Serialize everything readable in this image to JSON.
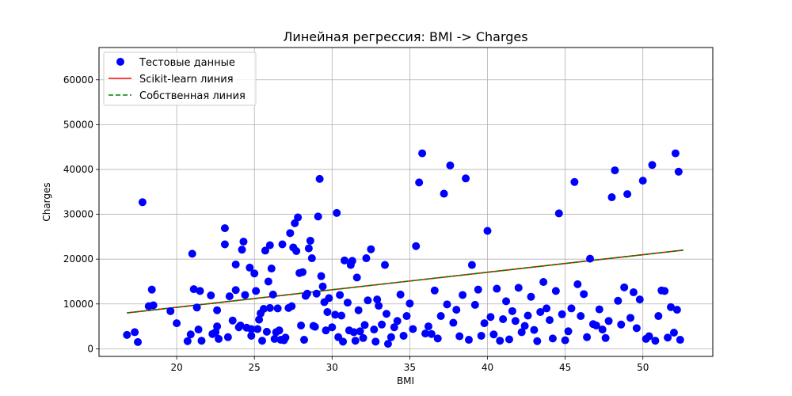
{
  "chart_data": {
    "type": "scatter",
    "title": "Линейная регрессия: BMI -> Charges",
    "xlabel": "BMI",
    "ylabel": "Charges",
    "xlim": [
      15.0,
      54.5
    ],
    "ylim": [
      -1700,
      67200
    ],
    "xticks": [
      20,
      25,
      30,
      35,
      40,
      45,
      50
    ],
    "yticks": [
      0,
      10000,
      20000,
      30000,
      40000,
      50000,
      60000
    ],
    "grid": true,
    "legend_position": "top-left",
    "series": [
      {
        "name": "Тестовые данные",
        "kind": "scatter",
        "color": "#0000ff",
        "points": [
          [
            16.8,
            3100
          ],
          [
            17.3,
            3700
          ],
          [
            17.5,
            1500
          ],
          [
            17.8,
            32700
          ],
          [
            18.2,
            9500
          ],
          [
            18.4,
            13200
          ],
          [
            18.5,
            9700
          ],
          [
            19.6,
            8400
          ],
          [
            20.0,
            5700
          ],
          [
            20.7,
            1700
          ],
          [
            20.9,
            3200
          ],
          [
            21.0,
            21200
          ],
          [
            21.1,
            13300
          ],
          [
            21.3,
            9200
          ],
          [
            21.4,
            4300
          ],
          [
            21.5,
            12900
          ],
          [
            21.6,
            1800
          ],
          [
            22.2,
            11900
          ],
          [
            22.3,
            3300
          ],
          [
            22.5,
            3700
          ],
          [
            22.6,
            8600
          ],
          [
            22.6,
            5000
          ],
          [
            22.7,
            2200
          ],
          [
            23.1,
            26900
          ],
          [
            23.1,
            23300
          ],
          [
            23.3,
            2600
          ],
          [
            23.4,
            11700
          ],
          [
            23.6,
            6300
          ],
          [
            23.8,
            13100
          ],
          [
            23.8,
            18800
          ],
          [
            24.0,
            4800
          ],
          [
            24.1,
            5200
          ],
          [
            24.2,
            22100
          ],
          [
            24.3,
            23900
          ],
          [
            24.4,
            12000
          ],
          [
            24.5,
            4700
          ],
          [
            24.7,
            18100
          ],
          [
            24.8,
            2900
          ],
          [
            24.8,
            4400
          ],
          [
            25.0,
            16800
          ],
          [
            25.1,
            12900
          ],
          [
            25.2,
            4400
          ],
          [
            25.3,
            6500
          ],
          [
            25.4,
            7900
          ],
          [
            25.5,
            1800
          ],
          [
            25.6,
            8900
          ],
          [
            25.7,
            21900
          ],
          [
            25.8,
            3800
          ],
          [
            25.9,
            15000
          ],
          [
            26.0,
            23100
          ],
          [
            26.0,
            9100
          ],
          [
            26.1,
            17900
          ],
          [
            26.2,
            12100
          ],
          [
            26.3,
            2200
          ],
          [
            26.4,
            3700
          ],
          [
            26.5,
            9000
          ],
          [
            26.6,
            4100
          ],
          [
            26.7,
            2000
          ],
          [
            26.8,
            23300
          ],
          [
            26.9,
            1900
          ],
          [
            27.0,
            2500
          ],
          [
            27.2,
            9100
          ],
          [
            27.3,
            25800
          ],
          [
            27.4,
            9500
          ],
          [
            27.5,
            22600
          ],
          [
            27.6,
            28000
          ],
          [
            27.7,
            21800
          ],
          [
            27.8,
            29300
          ],
          [
            27.9,
            16900
          ],
          [
            28.0,
            5200
          ],
          [
            28.1,
            17100
          ],
          [
            28.2,
            2000
          ],
          [
            28.3,
            11800
          ],
          [
            28.4,
            12300
          ],
          [
            28.5,
            22400
          ],
          [
            28.6,
            24100
          ],
          [
            28.7,
            20200
          ],
          [
            28.8,
            5100
          ],
          [
            28.9,
            4900
          ],
          [
            29.0,
            12300
          ],
          [
            29.1,
            29500
          ],
          [
            29.2,
            37900
          ],
          [
            29.3,
            16200
          ],
          [
            29.4,
            13900
          ],
          [
            29.5,
            10400
          ],
          [
            29.6,
            4100
          ],
          [
            29.7,
            8200
          ],
          [
            29.8,
            11300
          ],
          [
            30.0,
            4800
          ],
          [
            30.2,
            7600
          ],
          [
            30.3,
            30300
          ],
          [
            30.4,
            2600
          ],
          [
            30.5,
            12000
          ],
          [
            30.6,
            7400
          ],
          [
            30.7,
            1600
          ],
          [
            30.8,
            19700
          ],
          [
            31.0,
            10300
          ],
          [
            31.1,
            4100
          ],
          [
            31.2,
            18700
          ],
          [
            31.3,
            19600
          ],
          [
            31.4,
            3700
          ],
          [
            31.5,
            1800
          ],
          [
            31.6,
            15900
          ],
          [
            31.7,
            8600
          ],
          [
            31.8,
            3900
          ],
          [
            32.0,
            2400
          ],
          [
            32.1,
            5300
          ],
          [
            32.2,
            20200
          ],
          [
            32.3,
            10800
          ],
          [
            32.5,
            22200
          ],
          [
            32.7,
            4300
          ],
          [
            32.8,
            1600
          ],
          [
            32.9,
            11000
          ],
          [
            33.0,
            9600
          ],
          [
            33.2,
            5400
          ],
          [
            33.4,
            18700
          ],
          [
            33.5,
            7800
          ],
          [
            33.6,
            1100
          ],
          [
            33.8,
            2600
          ],
          [
            34.0,
            4800
          ],
          [
            34.2,
            6200
          ],
          [
            34.4,
            12100
          ],
          [
            34.6,
            2900
          ],
          [
            34.8,
            7300
          ],
          [
            35.0,
            10100
          ],
          [
            35.2,
            4400
          ],
          [
            35.4,
            22900
          ],
          [
            35.6,
            37100
          ],
          [
            35.8,
            43600
          ],
          [
            36.0,
            3400
          ],
          [
            36.2,
            5000
          ],
          [
            36.4,
            3300
          ],
          [
            36.6,
            13000
          ],
          [
            36.8,
            2300
          ],
          [
            37.0,
            7300
          ],
          [
            37.2,
            34600
          ],
          [
            37.4,
            9900
          ],
          [
            37.6,
            40900
          ],
          [
            37.8,
            5800
          ],
          [
            38.0,
            8700
          ],
          [
            38.2,
            2800
          ],
          [
            38.4,
            12000
          ],
          [
            38.6,
            38000
          ],
          [
            38.8,
            2000
          ],
          [
            39.0,
            18700
          ],
          [
            39.2,
            9800
          ],
          [
            39.4,
            13200
          ],
          [
            39.6,
            2900
          ],
          [
            39.8,
            5700
          ],
          [
            40.0,
            26300
          ],
          [
            40.2,
            7100
          ],
          [
            40.4,
            3200
          ],
          [
            40.6,
            13400
          ],
          [
            40.8,
            1800
          ],
          [
            41.0,
            6600
          ],
          [
            41.2,
            10600
          ],
          [
            41.4,
            2100
          ],
          [
            41.6,
            8400
          ],
          [
            41.8,
            6200
          ],
          [
            42.0,
            13600
          ],
          [
            42.2,
            3700
          ],
          [
            42.4,
            5100
          ],
          [
            42.6,
            7400
          ],
          [
            42.8,
            11600
          ],
          [
            43.0,
            4200
          ],
          [
            43.2,
            1700
          ],
          [
            43.4,
            8200
          ],
          [
            43.6,
            14900
          ],
          [
            43.8,
            9000
          ],
          [
            44.0,
            6400
          ],
          [
            44.2,
            2300
          ],
          [
            44.4,
            12900
          ],
          [
            44.6,
            30200
          ],
          [
            44.8,
            7700
          ],
          [
            45.0,
            1900
          ],
          [
            45.2,
            3900
          ],
          [
            45.4,
            9000
          ],
          [
            45.6,
            37200
          ],
          [
            45.8,
            14400
          ],
          [
            46.0,
            7300
          ],
          [
            46.2,
            12200
          ],
          [
            46.4,
            2600
          ],
          [
            46.6,
            20100
          ],
          [
            46.8,
            5500
          ],
          [
            47.0,
            5200
          ],
          [
            47.2,
            8800
          ],
          [
            47.4,
            4300
          ],
          [
            47.6,
            2400
          ],
          [
            47.8,
            6200
          ],
          [
            48.0,
            33800
          ],
          [
            48.2,
            39800
          ],
          [
            48.4,
            10700
          ],
          [
            48.6,
            5400
          ],
          [
            48.8,
            13700
          ],
          [
            49.0,
            34500
          ],
          [
            49.2,
            6900
          ],
          [
            49.4,
            12600
          ],
          [
            49.6,
            4600
          ],
          [
            49.8,
            11000
          ],
          [
            50.0,
            37500
          ],
          [
            50.2,
            2200
          ],
          [
            50.4,
            2800
          ],
          [
            50.6,
            41000
          ],
          [
            50.8,
            1800
          ],
          [
            51.0,
            7300
          ],
          [
            51.2,
            13000
          ],
          [
            51.4,
            12900
          ],
          [
            51.6,
            2500
          ],
          [
            51.8,
            9300
          ],
          [
            52.0,
            3600
          ],
          [
            52.1,
            43600
          ],
          [
            52.2,
            8700
          ],
          [
            52.3,
            39500
          ],
          [
            52.4,
            2000
          ]
        ]
      },
      {
        "name": "Scikit-learn линия",
        "kind": "line",
        "color": "#ff0000",
        "dash": "solid",
        "points": [
          [
            16.8,
            8000
          ],
          [
            52.6,
            22000
          ]
        ]
      },
      {
        "name": "Собственная линия",
        "kind": "line",
        "color": "#008000",
        "dash": "dashed",
        "points": [
          [
            16.8,
            8000
          ],
          [
            52.6,
            22000
          ]
        ]
      }
    ]
  }
}
